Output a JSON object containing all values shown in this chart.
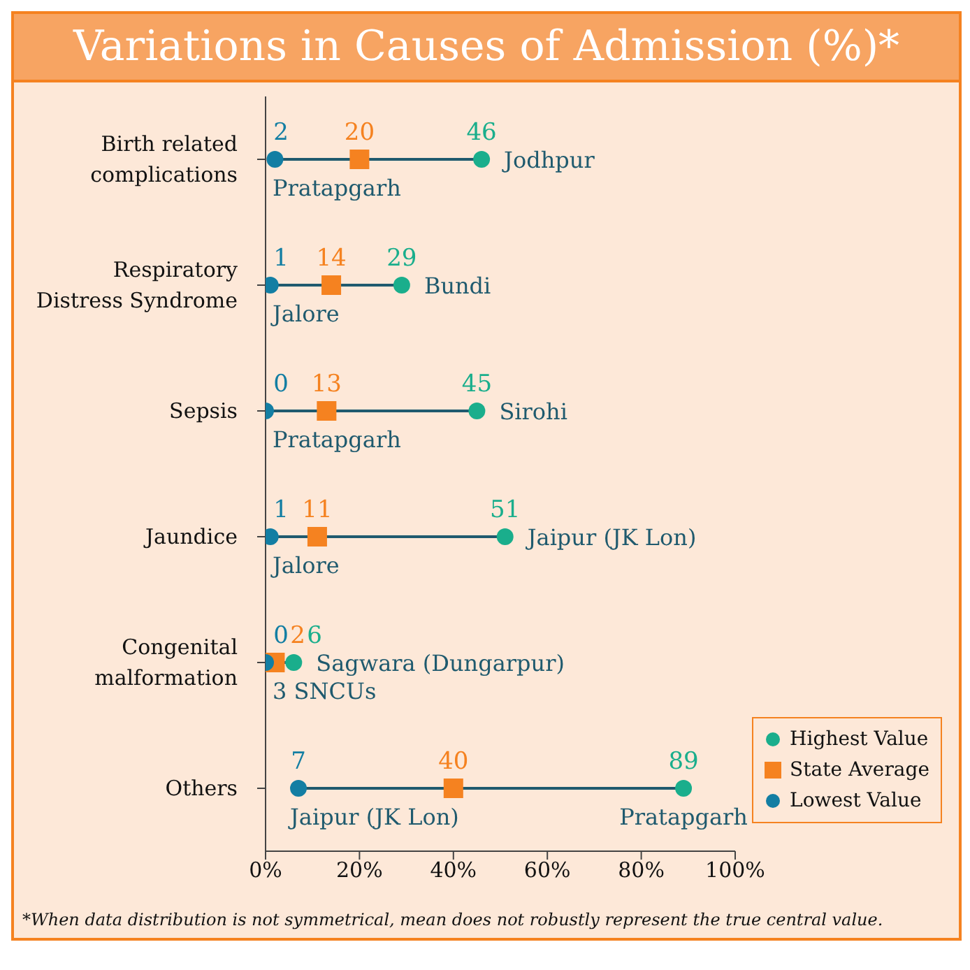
{
  "chart_data": {
    "type": "scatter",
    "orientation": "horizontal",
    "title": "Variations in Causes of Admission (%)*",
    "categories": [
      "Birth related complications",
      "Respiratory Distress Syndrome",
      "Sepsis",
      "Jaundice",
      "Congenital malformation",
      "Others"
    ],
    "series": [
      {
        "name": "Highest Value",
        "color": "#1aae8c",
        "marker": "circle",
        "values": [
          46,
          29,
          45,
          51,
          6,
          89
        ]
      },
      {
        "name": "State Average",
        "color": "#f58220",
        "marker": "square",
        "values": [
          20,
          14,
          13,
          11,
          2,
          40
        ]
      },
      {
        "name": "Lowest Value",
        "color": "#137ea3",
        "marker": "circle",
        "values": [
          2,
          1,
          0,
          1,
          0,
          7
        ]
      }
    ],
    "xlim": [
      0,
      100
    ],
    "xticks": [
      {
        "value": 0,
        "label": "0%"
      },
      {
        "value": 20,
        "label": "20%"
      },
      {
        "value": 40,
        "label": "40%"
      },
      {
        "value": 60,
        "label": "60%"
      },
      {
        "value": 80,
        "label": "80%"
      },
      {
        "value": 100,
        "label": "100%"
      }
    ],
    "legend": "bottom right",
    "data_labels": true,
    "annotations": [
      {
        "text": "Jodhpur",
        "x": 46,
        "y": "Birth related complications"
      },
      {
        "text": "Pratapgarh",
        "x": 2,
        "y": "Birth related complications"
      },
      {
        "text": "Bundi",
        "x": 29,
        "y": "Respiratory Distress Syndrome"
      },
      {
        "text": "Jalore",
        "x": 1,
        "y": "Respiratory Distress Syndrome"
      },
      {
        "text": "Sirohi",
        "x": 45,
        "y": "Sepsis"
      },
      {
        "text": "Pratapgarh",
        "x": 0,
        "y": "Sepsis"
      },
      {
        "text": "Jaipur (JK Lon)",
        "x": 51,
        "y": "Jaundice"
      },
      {
        "text": "Jalore",
        "x": 1,
        "y": "Jaundice"
      },
      {
        "text": "Sagwara (Dungarpur)",
        "x": 6,
        "y": "Congenital malformation"
      },
      {
        "text": "3 SNCUs",
        "x": 0,
        "y": "Congenital malformation"
      },
      {
        "text": "Jaipur (JK Lon)",
        "x": 7,
        "y": "Others"
      },
      {
        "text": "Pratapgarh",
        "x": 89,
        "y": "Others"
      },
      "*When data distribution is not symmetrical, mean does not robustly represent the true central value."
    ]
  }
}
